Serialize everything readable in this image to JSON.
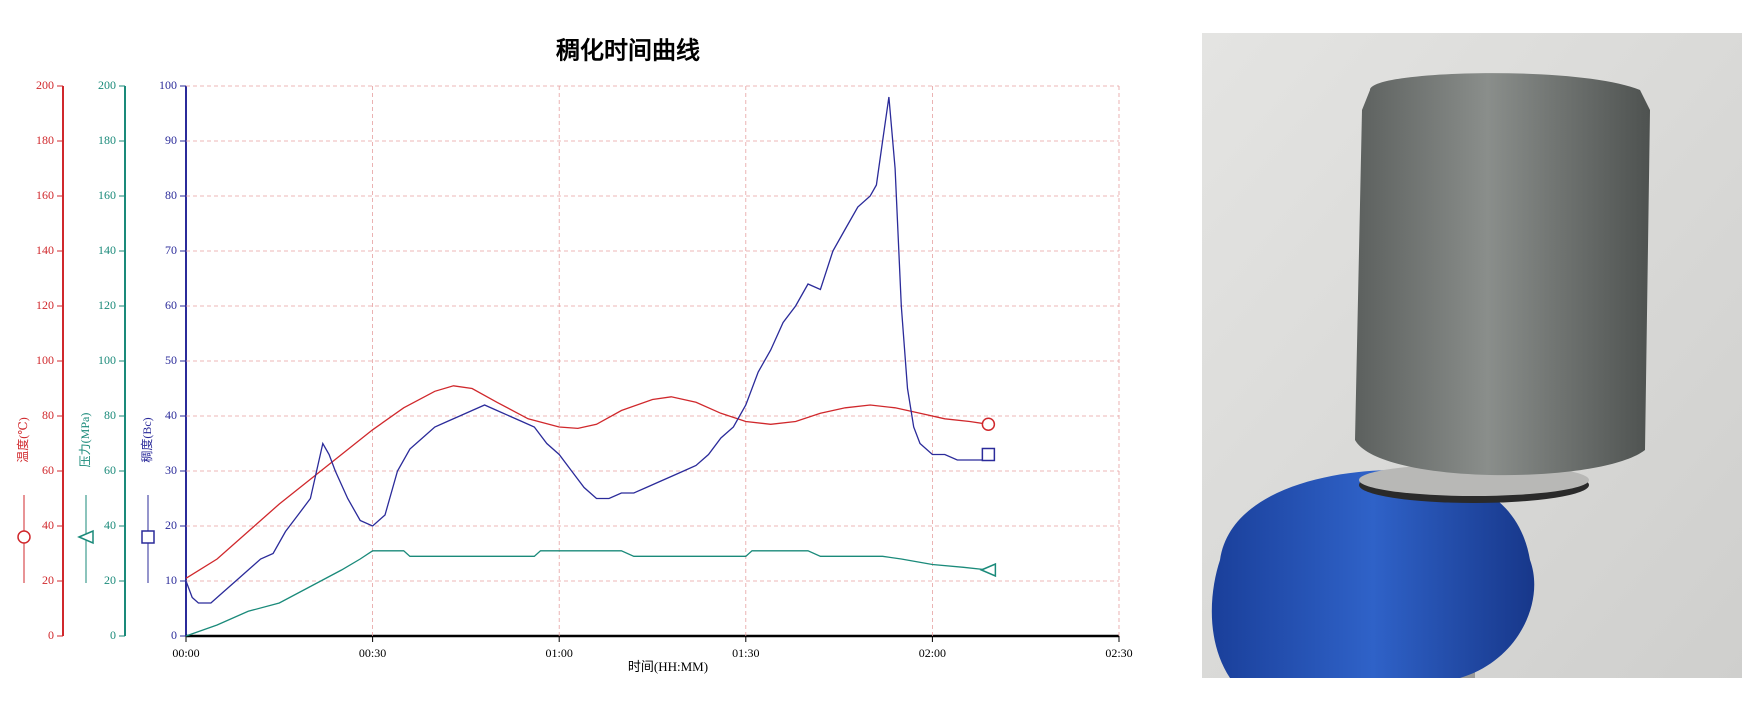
{
  "chart_data": {
    "type": "line",
    "title": "稠化时间曲线",
    "xlabel": "时间(HH:MM)",
    "xlim": [
      0,
      150
    ],
    "xticks": [
      {
        "value": 0,
        "label": "00:00"
      },
      {
        "value": 30,
        "label": "00:30"
      },
      {
        "value": 60,
        "label": "01:00"
      },
      {
        "value": 90,
        "label": "01:30"
      },
      {
        "value": 120,
        "label": "02:00"
      },
      {
        "value": 150,
        "label": "02:30"
      }
    ],
    "ylabel": "稠度(Bc)",
    "ylim": [
      0,
      100
    ],
    "yticks": [
      0,
      10,
      20,
      30,
      40,
      50,
      60,
      70,
      80,
      90,
      100
    ],
    "ycolor": "#2b2b9a",
    "y2label": "温度(℃)",
    "y2lim": [
      0,
      200
    ],
    "y2ticks": [
      0,
      20,
      40,
      60,
      80,
      100,
      120,
      140,
      160,
      180,
      200
    ],
    "y2color": "#d0282c",
    "y3label": "压力(MPa)",
    "y3lim": [
      0,
      200
    ],
    "y3ticks": [
      0,
      20,
      40,
      60,
      80,
      100,
      120,
      140,
      160,
      180,
      200
    ],
    "y3color": "#1a8a7a",
    "grid": true,
    "series": [
      {
        "name": "温度",
        "axis": "y2",
        "color": "#d0282c",
        "marker": "circle",
        "x": [
          0,
          5,
          10,
          15,
          20,
          25,
          30,
          35,
          40,
          43,
          46,
          50,
          55,
          60,
          63,
          66,
          70,
          75,
          78,
          82,
          86,
          90,
          94,
          98,
          102,
          106,
          110,
          114,
          118,
          122,
          126,
          129
        ],
        "values": [
          21,
          28,
          38,
          48,
          57,
          66,
          75,
          83,
          89,
          91,
          90,
          85,
          79,
          76,
          75.5,
          77,
          82,
          86,
          87,
          85,
          81,
          78,
          77,
          78,
          81,
          83,
          84,
          83,
          81,
          79,
          78,
          77
        ]
      },
      {
        "name": "压力",
        "axis": "y3",
        "color": "#1a8a7a",
        "marker": "triangle",
        "x": [
          0,
          5,
          10,
          15,
          20,
          25,
          28,
          30,
          35,
          36,
          40,
          50,
          56,
          57,
          60,
          70,
          72,
          80,
          90,
          91,
          100,
          102,
          112,
          115,
          120,
          125,
          129
        ],
        "values": [
          0,
          4,
          9,
          12,
          18,
          24,
          28,
          31,
          31,
          29,
          29,
          29,
          29,
          31,
          31,
          31,
          29,
          29,
          29,
          31,
          31,
          29,
          29,
          28,
          26,
          25,
          24
        ]
      },
      {
        "name": "稠度",
        "axis": "y",
        "color": "#2b2b9a",
        "marker": "square",
        "x": [
          0,
          1,
          2,
          4,
          6,
          8,
          10,
          12,
          14,
          16,
          18,
          20,
          21,
          22,
          23,
          24,
          26,
          28,
          30,
          32,
          34,
          36,
          38,
          40,
          42,
          44,
          46,
          48,
          50,
          52,
          54,
          56,
          58,
          60,
          62,
          64,
          66,
          68,
          70,
          72,
          74,
          76,
          78,
          80,
          82,
          84,
          86,
          88,
          90,
          92,
          94,
          96,
          98,
          100,
          102,
          104,
          106,
          108,
          110,
          111,
          112,
          113,
          114,
          115,
          116,
          117,
          118,
          120,
          122,
          124,
          126,
          128,
          129
        ],
        "values": [
          10,
          7,
          6,
          6,
          8,
          10,
          12,
          14,
          15,
          19,
          22,
          25,
          30,
          35,
          33,
          30,
          25,
          21,
          20,
          22,
          30,
          34,
          36,
          38,
          39,
          40,
          41,
          42,
          41,
          40,
          39,
          38,
          35,
          33,
          30,
          27,
          25,
          25,
          26,
          26,
          27,
          28,
          29,
          30,
          31,
          33,
          36,
          38,
          42,
          48,
          52,
          57,
          60,
          64,
          63,
          70,
          74,
          78,
          80,
          82,
          90,
          98,
          85,
          60,
          45,
          38,
          35,
          33,
          33,
          32,
          32,
          32,
          33
        ]
      }
    ]
  }
}
